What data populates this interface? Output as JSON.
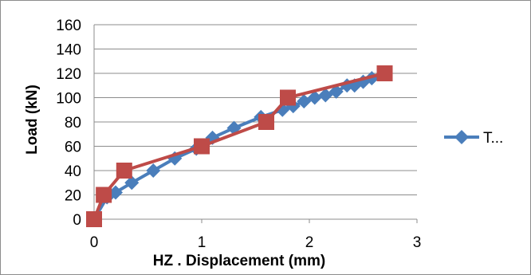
{
  "chart_data": {
    "type": "line",
    "xlabel": "HZ . Displacement (mm)",
    "ylabel": "Load (kN)",
    "xlim": [
      0,
      3
    ],
    "ylim": [
      0,
      160
    ],
    "x_ticks": [
      0,
      1,
      2,
      3
    ],
    "y_ticks": [
      0,
      20,
      40,
      60,
      80,
      100,
      120,
      140,
      160
    ],
    "grid": "horizontal",
    "legend": {
      "position": "right",
      "label": "T..."
    },
    "series": [
      {
        "name": "T...",
        "color": "#4a7ebb",
        "marker": "diamond",
        "x": [
          0,
          0.12,
          0.2,
          0.35,
          0.55,
          0.75,
          0.95,
          1.1,
          1.3,
          1.55,
          1.75,
          1.85,
          1.95,
          2.05,
          2.15,
          2.25,
          2.35,
          2.42,
          2.5,
          2.58
        ],
        "y": [
          0,
          18,
          22,
          30,
          40,
          50,
          58,
          67,
          75,
          84,
          90,
          93,
          97,
          100,
          102,
          105,
          110,
          110,
          113,
          116
        ]
      },
      {
        "name": "",
        "color": "#be4b48",
        "marker": "square",
        "x": [
          0,
          0.09,
          0.28,
          1.0,
          1.6,
          1.8,
          2.7
        ],
        "y": [
          0,
          20,
          40,
          60,
          80,
          100,
          120
        ]
      }
    ]
  }
}
